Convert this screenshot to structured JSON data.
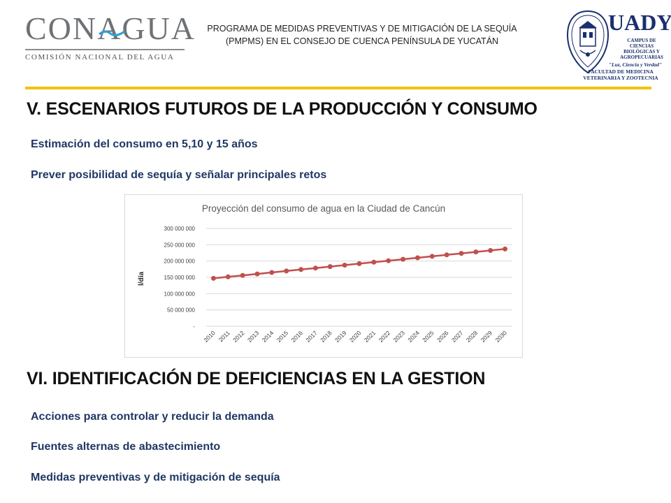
{
  "header": {
    "logo_left": {
      "wordmark": "CONAGUA",
      "subtitle": "COMISIÓN NACIONAL DEL AGUA"
    },
    "program_title_line1": "PROGRAMA DE MEDIDAS PREVENTIVAS Y DE MITIGACIÓN DE LA SEQUÍA",
    "program_title_line2": "(PMPMS) EN EL CONSEJO DE CUENCA PENÍNSULA DE YUCATÁN",
    "logo_right": {
      "wordmark": "UADY",
      "campus_line1": "CAMPUS DE",
      "campus_line2": "CIENCIAS",
      "campus_line3": "BIOLÓGICAS Y",
      "campus_line4": "AGROPECUARIAS",
      "motto": "\"Luz, Ciencia y Verdad\"",
      "faculty_line1": "FACULTAD DE MEDICINA",
      "faculty_line2": "VETERINARIA Y ZOOTECNIA"
    }
  },
  "section5": {
    "heading": "V. ESCENARIOS FUTUROS DE LA PRODUCCIÓN Y CONSUMO",
    "bullets": [
      "Estimación del consumo en 5,10 y 15 años",
      "Prever posibilidad de sequía y señalar principales retos"
    ]
  },
  "section6": {
    "heading": "VI. IDENTIFICACIÓN DE DEFICIENCIAS EN LA GESTION",
    "bullets": [
      "Acciones para controlar y reducir la demanda",
      "Fuentes alternas de abastecimiento",
      "Medidas preventivas y de mitigación de sequía"
    ]
  },
  "colors": {
    "accent_rule": "#f2c300",
    "bullet_text": "#1f3864",
    "series_line": "#c0504d",
    "logo_blue": "#1a2f6e"
  },
  "chart_data": {
    "type": "line",
    "title": "Proyección del consumo de agua en la Ciudad de Cancún",
    "ylabel": "l/día",
    "xlabel": "",
    "categories": [
      "2010",
      "2011",
      "2012",
      "2013",
      "2014",
      "2015",
      "2016",
      "2017",
      "2018",
      "2019",
      "2020",
      "2021",
      "2022",
      "2023",
      "2024",
      "2025",
      "2026",
      "2027",
      "2028",
      "2029",
      "2030"
    ],
    "series": [
      {
        "values": [
          147000000,
          151500000,
          156000000,
          160500000,
          165000000,
          169500000,
          174000000,
          178500000,
          183000000,
          187500000,
          192000000,
          196500000,
          201000000,
          205500000,
          210000000,
          214500000,
          219000000,
          223500000,
          228000000,
          232500000,
          237000000
        ]
      }
    ],
    "ylim": [
      0,
      300000000
    ],
    "yticks": [
      0,
      50000000,
      100000000,
      150000000,
      200000000,
      250000000,
      300000000
    ],
    "ytick_labels": [
      "-",
      "50 000 000",
      "100 000 000",
      "150 000 000",
      "200 000 000",
      "250 000 000",
      "300 000 000"
    ],
    "grid": true,
    "legend": "none",
    "marker": "circle"
  }
}
